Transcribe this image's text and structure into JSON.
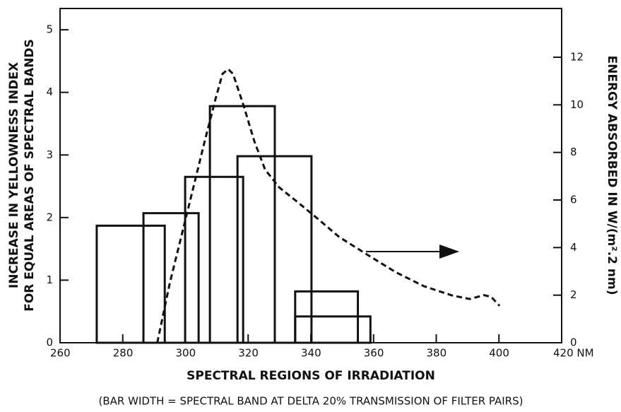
{
  "chart_data": {
    "type": "bar-range",
    "x_label": "SPECTRAL REGIONS OF IRRADIATION",
    "y_label": [
      "INCREASE IN YELLOWNESS INDEX",
      "FOR EQUAL AREAS OF SPECTRAL BANDS"
    ],
    "y2_label": "ENERGY ABSORBED IN W/(m².2 nm)",
    "note": "(BAR WIDTH = SPECTRAL BAND AT DELTA 20% TRANSMISSION OF FILTER PAIRS)",
    "xlim": [
      260,
      420
    ],
    "xticks": [
      260,
      280,
      300,
      320,
      340,
      360,
      380,
      400,
      {
        "value": 420,
        "label": "420 NM"
      }
    ],
    "ylim": [
      0,
      5.34
    ],
    "yticks": [
      0,
      1,
      2,
      3,
      4,
      5
    ],
    "y2lim": [
      0,
      14.05
    ],
    "y2ticks": [
      0,
      2,
      4,
      6,
      8,
      10,
      12
    ],
    "bars": {
      "x_start": [
        271.7,
        286.6,
        299.9,
        307.8,
        316.6,
        335,
        335
      ],
      "x_end": [
        293.4,
        304.2,
        318.4,
        328.5,
        340.2,
        355,
        359
      ],
      "values": [
        1.87,
        2.07,
        2.65,
        3.78,
        2.98,
        0.82,
        0.42
      ],
      "color": "#111111"
    },
    "line": {
      "axis": "y2",
      "color": "#111111",
      "x": [
        291,
        295,
        300.6,
        306.2,
        309.6,
        311.8,
        313.6,
        315.2,
        318.6,
        322,
        325.4,
        329.9,
        335.5,
        342.3,
        349,
        358,
        367,
        376,
        385,
        390.7,
        395.2,
        397.5,
        400.2
      ],
      "values": [
        0,
        2.5,
        5.5,
        8.5,
        10.25,
        11.3,
        11.5,
        11.3,
        9.95,
        8.46,
        7.28,
        6.53,
        5.94,
        5.2,
        4.45,
        3.7,
        2.97,
        2.38,
        1.99,
        1.84,
        2,
        1.93,
        1.55
      ]
    }
  }
}
